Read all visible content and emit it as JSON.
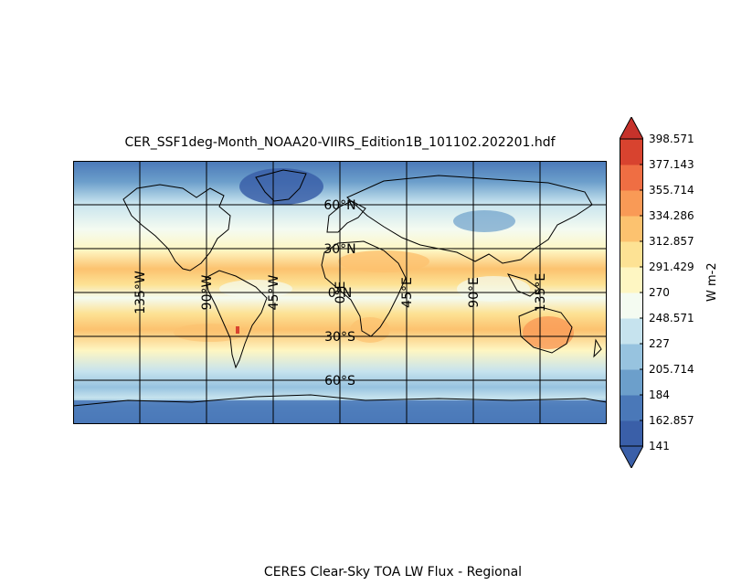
{
  "figure": {
    "title": "CER_SSF1deg-Month_NOAA20-VIIRS_Edition1B_101102.202201.hdf",
    "footer": "CERES Clear-Sky TOA LW Flux - Regional"
  },
  "map": {
    "projection": "equirectangular",
    "lon_range": [
      -180,
      180
    ],
    "lat_range": [
      -90,
      90
    ],
    "parallels": [
      60,
      30,
      0,
      -30,
      -60
    ],
    "meridians": [
      -135,
      -90,
      -45,
      0,
      45,
      90,
      135
    ],
    "lat_labels": [
      "60°N",
      "30°N",
      "0°N",
      "30°S",
      "60°S"
    ],
    "lon_labels": [
      "135°W",
      "90°W",
      "45°W",
      "0°E",
      "45°E",
      "90°E",
      "135°E"
    ],
    "field_description": "Clear-sky TOA outgoing longwave flux: lowest over Antarctica and Greenland, highest over subtropical deserts and oceans"
  },
  "colorbar": {
    "units": "W m-2",
    "ticks": [
      "398.571",
      "377.143",
      "355.714",
      "334.286",
      "312.857",
      "291.429",
      "270",
      "248.571",
      "227",
      "205.714",
      "184",
      "162.857",
      "141"
    ],
    "colors": [
      "#3a5fa8",
      "#4a78b8",
      "#6c9fcb",
      "#97c3df",
      "#c6e3ee",
      "#f4fbf1",
      "#fef6c2",
      "#fde294",
      "#fcc26f",
      "#f99a56",
      "#ef6e43",
      "#d8432f"
    ],
    "min_color": "#3a5fa8",
    "max_color": "#c6322b"
  }
}
